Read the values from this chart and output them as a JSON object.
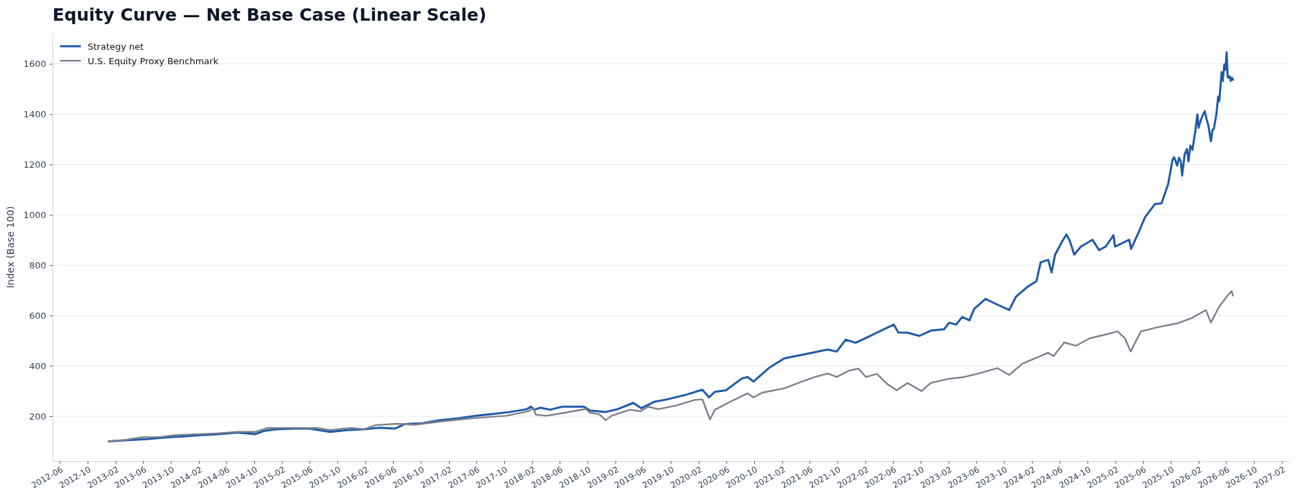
{
  "chart_data": {
    "type": "line",
    "title": "Equity Curve — Net Base Case (Linear Scale)",
    "ylabel": "Index (Base 100)",
    "xlim": [
      "2012-04-30",
      "2027-03-05"
    ],
    "ylim": [
      22,
      1722
    ],
    "xticks": [
      "2012-06",
      "2012-10",
      "2013-02",
      "2013-06",
      "2013-10",
      "2014-02",
      "2014-06",
      "2014-10",
      "2015-02",
      "2015-06",
      "2015-10",
      "2016-02",
      "2016-06",
      "2016-10",
      "2017-02",
      "2017-06",
      "2017-10",
      "2018-02",
      "2018-06",
      "2018-10",
      "2019-02",
      "2019-06",
      "2019-10",
      "2020-02",
      "2020-06",
      "2020-10",
      "2021-02",
      "2021-06",
      "2021-10",
      "2022-02",
      "2022-06",
      "2022-10",
      "2023-02",
      "2023-06",
      "2023-10",
      "2024-02",
      "2024-06",
      "2024-10",
      "2025-02",
      "2025-06",
      "2025-10",
      "2026-02",
      "2026-06",
      "2026-10",
      "2027-02"
    ],
    "yticks": [
      200,
      400,
      600,
      800,
      1000,
      1200,
      1400,
      1600
    ],
    "grid": "y",
    "legend": "top left",
    "series": [
      {
        "name": "Strategy net",
        "color": "#1f5aa6",
        "x": [
          "2013-01-01",
          "2013-03-14",
          "2013-06-14",
          "2013-09-13",
          "2013-11-25",
          "2014-02-06",
          "2014-04-21",
          "2014-07-21",
          "2014-10-05",
          "2014-11-11",
          "2015-01-05",
          "2015-03-19",
          "2015-05-31",
          "2015-08-30",
          "2015-11-11",
          "2016-01-23",
          "2016-04-05",
          "2016-06-10",
          "2016-07-23",
          "2016-10-08",
          "2016-12-20",
          "2017-03-22",
          "2017-06-03",
          "2017-08-15",
          "2017-10-27",
          "2018-01-08",
          "2018-01-26",
          "2018-02-10",
          "2018-03-10",
          "2018-04-20",
          "2018-06-13",
          "2018-09-16",
          "2018-10-12",
          "2018-12-20",
          "2019-02-10",
          "2019-04-20",
          "2019-05-25",
          "2019-07-23",
          "2019-09-16",
          "2019-12-05",
          "2020-02-17",
          "2020-03-17",
          "2020-04-12",
          "2020-05-30",
          "2020-08-08",
          "2020-09-02",
          "2020-09-28",
          "2020-12-05",
          "2021-02-10",
          "2021-05-15",
          "2021-08-19",
          "2021-09-28",
          "2021-11-06",
          "2021-12-20",
          "2022-02-24",
          "2022-05-05",
          "2022-06-05",
          "2022-06-25",
          "2022-08-04",
          "2022-09-25",
          "2022-11-14",
          "2023-01-12",
          "2023-02-03",
          "2023-03-05",
          "2023-04-01",
          "2023-05-03",
          "2023-05-23",
          "2023-07-12",
          "2023-09-03",
          "2023-10-24",
          "2023-11-22",
          "2024-01-12",
          "2024-02-20",
          "2024-03-10",
          "2024-04-12",
          "2024-04-27",
          "2024-05-12",
          "2024-06-13",
          "2024-07-01",
          "2024-07-16",
          "2024-08-04",
          "2024-09-02",
          "2024-10-23",
          "2024-11-21",
          "2024-12-20",
          "2025-01-23",
          "2025-01-30",
          "2025-04-02",
          "2025-04-10",
          "2025-05-12",
          "2025-06-10",
          "2025-07-24",
          "2025-08-22",
          "2025-09-20",
          "2025-10-09",
          "2025-10-16",
          "2025-10-29",
          "2025-11-06",
          "2025-11-14",
          "2025-11-20",
          "2025-12-01",
          "2025-12-11",
          "2025-12-18",
          "2025-12-26",
          "2026-01-04",
          "2026-01-16",
          "2026-01-26",
          "2026-01-31",
          "2026-02-10",
          "2026-02-20",
          "2026-02-27",
          "2026-03-07",
          "2026-03-15",
          "2026-03-26",
          "2026-04-02",
          "2026-04-08",
          "2026-04-19",
          "2026-04-27",
          "2026-05-02",
          "2026-05-12",
          "2026-05-17",
          "2026-05-24",
          "2026-05-29",
          "2026-06-03",
          "2026-06-08",
          "2026-06-16",
          "2026-06-21",
          "2026-06-26",
          "2026-07-01"
        ],
        "values": [
          100,
          104,
          109,
          116,
          120,
          125,
          128,
          135,
          129,
          141,
          148,
          151,
          151,
          138,
          145,
          148,
          154,
          151,
          169,
          172,
          184,
          193,
          202,
          209,
          217,
          228,
          238,
          226,
          234,
          226,
          238,
          238,
          223,
          217,
          228,
          253,
          232,
          258,
          267,
          285,
          305,
          275,
          297,
          303,
          350,
          356,
          338,
          392,
          430,
          447,
          465,
          457,
          504,
          492,
          520,
          551,
          564,
          533,
          532,
          519,
          540,
          546,
          572,
          564,
          594,
          581,
          626,
          666,
          643,
          622,
          674,
          714,
          736,
          812,
          821,
          771,
          842,
          896,
          922,
          896,
          842,
          874,
          901,
          860,
          874,
          919,
          874,
          901,
          865,
          928,
          990,
          1043,
          1046,
          1123,
          1220,
          1229,
          1196,
          1227,
          1213,
          1156,
          1240,
          1262,
          1213,
          1275,
          1258,
          1328,
          1399,
          1346,
          1377,
          1399,
          1412,
          1381,
          1355,
          1293,
          1337,
          1342,
          1399,
          1470,
          1452,
          1567,
          1532,
          1598,
          1576,
          1646,
          1545,
          1550,
          1532,
          1545,
          1537
        ]
      },
      {
        "name": "U.S. Equity Proxy Benchmark",
        "color": "#7a808c",
        "x": [
          "2013-01-01",
          "2013-03-14",
          "2013-05-27",
          "2013-08-08",
          "2013-10-20",
          "2014-01-01",
          "2014-04-21",
          "2014-07-21",
          "2014-10-05",
          "2014-11-29",
          "2015-03-19",
          "2015-07-06",
          "2015-08-30",
          "2015-11-29",
          "2016-01-23",
          "2016-03-18",
          "2016-06-18",
          "2016-09-01",
          "2017-01-15",
          "2017-05-30",
          "2017-10-12",
          "2018-01-15",
          "2018-02-06",
          "2018-02-17",
          "2018-04-05",
          "2018-06-25",
          "2018-09-24",
          "2018-10-12",
          "2018-11-21",
          "2018-12-20",
          "2019-01-15",
          "2019-04-05",
          "2019-05-23",
          "2019-06-25",
          "2019-08-08",
          "2019-10-27",
          "2020-01-15",
          "2020-02-17",
          "2020-03-10",
          "2020-03-21",
          "2020-04-12",
          "2020-06-13",
          "2020-09-02",
          "2020-09-28",
          "2020-11-07",
          "2021-02-10",
          "2021-04-20",
          "2021-06-25",
          "2021-08-19",
          "2021-09-28",
          "2021-11-22",
          "2022-01-01",
          "2022-02-03",
          "2022-03-23",
          "2022-05-09",
          "2022-06-18",
          "2022-08-04",
          "2022-10-05",
          "2022-11-14",
          "2023-01-27",
          "2023-04-10",
          "2023-06-03",
          "2023-09-03",
          "2023-10-24",
          "2023-12-21",
          "2024-04-12",
          "2024-05-05",
          "2024-06-21",
          "2024-08-11",
          "2024-10-12",
          "2024-12-13",
          "2025-02-10",
          "2025-03-14",
          "2025-04-08",
          "2025-05-23",
          "2025-08-11",
          "2025-10-30",
          "2026-01-01",
          "2026-03-04",
          "2026-03-26",
          "2026-05-01",
          "2026-06-10",
          "2026-06-25",
          "2026-07-01"
        ],
        "values": [
          100,
          106,
          117,
          117,
          125,
          128,
          132,
          138,
          138,
          153,
          154,
          153,
          145,
          154,
          148,
          165,
          170,
          166,
          181,
          193,
          202,
          220,
          232,
          206,
          202,
          214,
          229,
          214,
          208,
          184,
          202,
          226,
          220,
          238,
          228,
          243,
          265,
          267,
          214,
          187,
          226,
          255,
          291,
          275,
          294,
          311,
          335,
          356,
          370,
          356,
          382,
          389,
          356,
          368,
          327,
          303,
          332,
          300,
          332,
          348,
          356,
          368,
          391,
          364,
          409,
          452,
          439,
          493,
          480,
          510,
          523,
          537,
          510,
          457,
          537,
          555,
          569,
          590,
          622,
          572,
          635,
          682,
          697,
          679
        ]
      }
    ]
  }
}
